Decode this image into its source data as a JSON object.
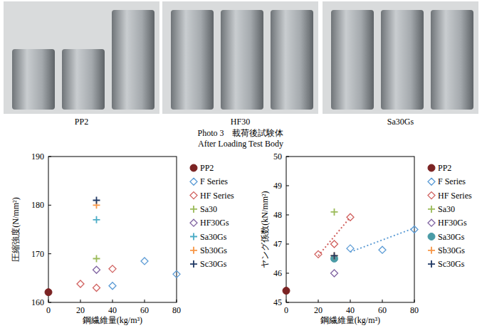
{
  "photo": {
    "labels": [
      "PP2",
      "HF30",
      "Sa30Gs"
    ],
    "caption": "Photo 3　載荷後試験体",
    "caption_en": "After Loading Test Body"
  },
  "chart_data": [
    {
      "type": "scatter",
      "x_label": "鋼繊維量(kg/m³)",
      "y_label": "圧縮強度(N/mm²)",
      "xlim": [
        0,
        80
      ],
      "xticks": [
        0,
        20,
        40,
        60,
        80
      ],
      "ylim": [
        160,
        190
      ],
      "yticks": [
        160,
        170,
        180,
        190
      ],
      "grid": false,
      "legend": "right",
      "series": [
        {
          "name": "PP2",
          "color": "#7b2323",
          "marker": "circle",
          "x": [
            0
          ],
          "values": [
            162.1
          ]
        },
        {
          "name": "F Series",
          "color": "#5b9bd5",
          "marker": "diamond",
          "x": [
            40,
            60,
            80
          ],
          "values": [
            163.4,
            168.5,
            165.8
          ]
        },
        {
          "name": "HF Series",
          "color": "#d0605e",
          "marker": "diamond",
          "x": [
            20,
            30,
            40
          ],
          "values": [
            163.8,
            163.0,
            166.9
          ]
        },
        {
          "name": "Sa30",
          "color": "#9bbb59",
          "marker": "plus",
          "x": [
            30
          ],
          "values": [
            169.0
          ]
        },
        {
          "name": "HF30Gs",
          "color": "#8064a2",
          "marker": "diamond",
          "x": [
            30
          ],
          "values": [
            166.7
          ]
        },
        {
          "name": "Sa30Gs",
          "color": "#4bacc6",
          "marker": "plus",
          "x": [
            30
          ],
          "values": [
            177.0
          ]
        },
        {
          "name": "Sb30Gs",
          "color": "#f79646",
          "marker": "plus",
          "x": [
            30
          ],
          "values": [
            180.0
          ]
        },
        {
          "name": "Sc30Gs",
          "color": "#1f3864",
          "marker": "plus",
          "x": [
            30
          ],
          "values": [
            181.0
          ]
        }
      ]
    },
    {
      "type": "scatter",
      "x_label": "鋼繊維量(kg/m³)",
      "y_label": "ヤング係数(kN/mm²)",
      "xlim": [
        0,
        80
      ],
      "xticks": [
        0,
        20,
        40,
        60,
        80
      ],
      "ylim": [
        45,
        50
      ],
      "yticks": [
        45,
        46,
        47,
        48,
        49,
        50
      ],
      "grid": false,
      "legend": "right",
      "series": [
        {
          "name": "PP2",
          "color": "#7b2323",
          "marker": "circle",
          "x": [
            0
          ],
          "values": [
            45.4
          ]
        },
        {
          "name": "F Series",
          "color": "#5b9bd5",
          "marker": "diamond",
          "line_style": "dotted",
          "x": [
            40,
            60,
            80
          ],
          "values": [
            46.85,
            46.8,
            47.5
          ],
          "trendline": {
            "x": [
              40,
              80
            ],
            "values": [
              46.73,
              47.55
            ]
          }
        },
        {
          "name": "HF Series",
          "color": "#d0605e",
          "marker": "diamond",
          "line_style": "dotted",
          "x": [
            20,
            30,
            40
          ],
          "values": [
            46.65,
            47.0,
            47.92
          ],
          "trendline": {
            "x": [
              20,
              40
            ],
            "values": [
              46.6,
              47.92
            ]
          }
        },
        {
          "name": "Sa30",
          "color": "#9bbb59",
          "marker": "plus",
          "x": [
            30
          ],
          "values": [
            48.1
          ]
        },
        {
          "name": "HF30Gs",
          "color": "#8064a2",
          "marker": "diamond",
          "x": [
            30
          ],
          "values": [
            46.0
          ]
        },
        {
          "name": "Sa30Gs",
          "color": "#4a9ba6",
          "marker": "circle",
          "x": [
            30
          ],
          "values": [
            46.5
          ]
        },
        {
          "name": "Sb30Gs",
          "color": "#f79646",
          "marker": "plus",
          "x": [
            30
          ],
          "values": [
            46.6
          ]
        },
        {
          "name": "Sc30Gs",
          "color": "#1f3864",
          "marker": "plus",
          "x": [
            30
          ],
          "values": [
            46.6
          ]
        }
      ]
    }
  ]
}
